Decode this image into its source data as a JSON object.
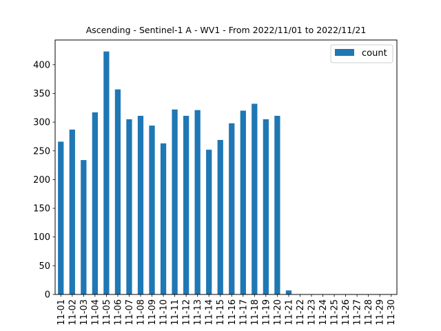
{
  "chart_data": {
    "type": "bar",
    "title": "Ascending - Sentinel-1 A - WV1 - From 2022/11/01 to 2022/11/21",
    "xlabel": "",
    "ylabel": "",
    "categories": [
      "11-01",
      "11-02",
      "11-03",
      "11-04",
      "11-05",
      "11-06",
      "11-07",
      "11-08",
      "11-09",
      "11-10",
      "11-11",
      "11-12",
      "11-13",
      "11-14",
      "11-15",
      "11-16",
      "11-17",
      "11-18",
      "11-19",
      "11-20",
      "11-21",
      "11-22",
      "11-23",
      "11-24",
      "11-25",
      "11-26",
      "11-27",
      "11-28",
      "11-29",
      "11-30"
    ],
    "series": [
      {
        "name": "count",
        "color": "#1f77b4",
        "values": [
          266,
          287,
          234,
          317,
          423,
          357,
          305,
          311,
          294,
          263,
          322,
          311,
          321,
          252,
          269,
          298,
          320,
          332,
          305,
          311,
          7,
          0,
          0,
          0,
          0,
          0,
          0,
          0,
          0,
          0
        ]
      }
    ],
    "ylim": [
      0,
      443
    ],
    "yticks": [
      0,
      50,
      100,
      150,
      200,
      250,
      300,
      350,
      400
    ],
    "grid": false,
    "legend": "top-right"
  }
}
